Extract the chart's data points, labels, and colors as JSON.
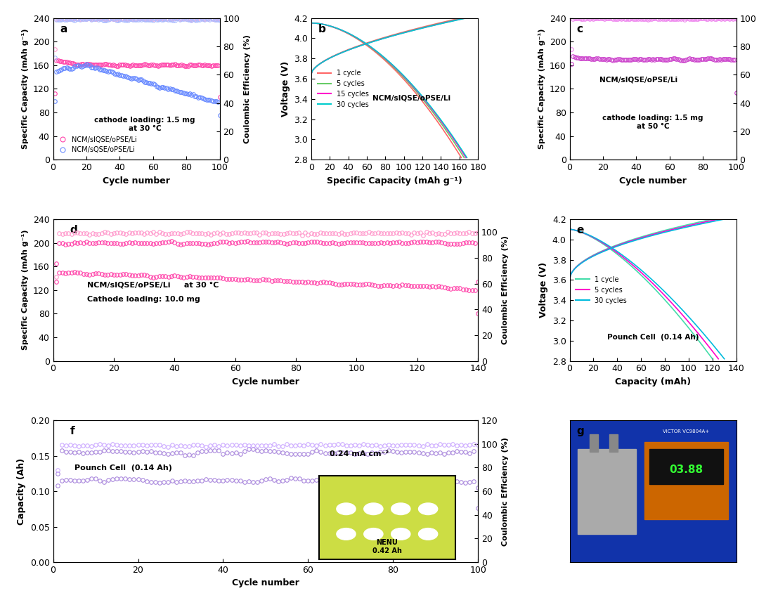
{
  "panel_a": {
    "label": "a",
    "xlim": [
      0,
      100
    ],
    "ylim_left": [
      0,
      240
    ],
    "ylim_right": [
      0,
      100
    ],
    "yticks_left": [
      0,
      40,
      80,
      120,
      160,
      200,
      240
    ],
    "yticks_right": [
      0,
      20,
      40,
      60,
      80,
      100
    ],
    "xlabel": "Cycle number",
    "ylabel_left": "Specific Capacity (mAh g⁻¹)",
    "ylabel_right": "Coulombic Efficiency (%)",
    "legend": [
      "NCM/sIQSE/oPSE/Li",
      "NCM/sQSE/oPSE/Li"
    ],
    "legend_colors": [
      "#FF00FF",
      "#6699FF"
    ],
    "annotation": "cathode loading: 1.5 mg\nat 30 °C"
  },
  "panel_b": {
    "label": "b",
    "xlim": [
      0,
      180
    ],
    "ylim": [
      2.8,
      4.2
    ],
    "xticks": [
      0,
      20,
      40,
      60,
      80,
      100,
      120,
      140,
      160,
      180
    ],
    "yticks": [
      2.8,
      3.0,
      3.2,
      3.4,
      3.6,
      3.8,
      4.0,
      4.2
    ],
    "xlabel": "Specific Capacity (mAh g⁻¹)",
    "ylabel": "Voltage (V)",
    "legend": [
      "1 cycle",
      "5 cycles",
      "15 cycles",
      "30 cycles"
    ],
    "legend_colors": [
      "#FF6666",
      "#66CC66",
      "#FF00CC",
      "#00CCCC"
    ],
    "annotation": "NCM/sIQSE/oPSE/Li"
  },
  "panel_c": {
    "label": "c",
    "xlim": [
      0,
      100
    ],
    "ylim_left": [
      0,
      240
    ],
    "ylim_right": [
      0,
      100
    ],
    "yticks_left": [
      0,
      40,
      80,
      120,
      160,
      200,
      240
    ],
    "yticks_right": [
      0,
      20,
      40,
      60,
      80,
      100
    ],
    "xlabel": "Cycle number",
    "ylabel_left": "Specific Capacity (mAh g⁻¹)",
    "ylabel_right": "Coulombic Efficiency (%)",
    "annotation1": "NCM/sIQSE/oPSE/Li",
    "annotation2": "cathode loading: 1.5 mg\nat 50 °C",
    "color": "#CC44CC"
  },
  "panel_d": {
    "label": "d",
    "xlim": [
      0,
      140
    ],
    "ylim_left": [
      0,
      240
    ],
    "ylim_right": [
      0,
      110
    ],
    "yticks_left": [
      0,
      40,
      80,
      120,
      160,
      200,
      240
    ],
    "yticks_right": [
      0,
      20,
      40,
      60,
      80,
      100
    ],
    "xlabel": "Cycle number",
    "ylabel_left": "Specific Capacity (mAh g⁻¹)",
    "ylabel_right": "Coulombic Efficiency (%)",
    "annotation1": "NCM/sIQSE/oPSE/Li     at 30 °C",
    "annotation2": "Cathode loading: 10.0 mg",
    "color": "#FF44AA"
  },
  "panel_e": {
    "label": "e",
    "xlim": [
      0,
      140
    ],
    "ylim": [
      2.8,
      4.2
    ],
    "xticks": [
      0,
      20,
      40,
      60,
      80,
      100,
      120,
      140
    ],
    "yticks": [
      2.8,
      3.0,
      3.2,
      3.4,
      3.6,
      3.8,
      4.0,
      4.2
    ],
    "xlabel": "Capacity (mAh)",
    "ylabel": "Voltage (V)",
    "legend": [
      "1 cycle",
      "5 cycles",
      "30 cycles"
    ],
    "legend_colors": [
      "#44DDAA",
      "#FF00CC",
      "#00BBDD"
    ],
    "annotation": "Pounch Cell  (0.14 Ah)"
  },
  "panel_f": {
    "label": "f",
    "xlim": [
      0,
      100
    ],
    "ylim_left": [
      0.0,
      0.2
    ],
    "ylim_right": [
      0,
      120
    ],
    "yticks_left": [
      0.0,
      0.05,
      0.1,
      0.15,
      0.2
    ],
    "yticks_right": [
      0,
      20,
      40,
      60,
      80,
      100,
      120
    ],
    "xlabel": "Cycle number",
    "ylabel_left": "Capacity (Ah)",
    "ylabel_right": "Coulombic Efficiency (%)",
    "annotation1": "Pounch Cell  (0.14 Ah)",
    "annotation2": "0.24 mA cm⁻²",
    "color": "#AA88DD"
  },
  "colors": {
    "magenta": "#FF44AA",
    "blue_light": "#8899FF",
    "purple": "#CC44CC",
    "violet": "#AA88DD"
  }
}
